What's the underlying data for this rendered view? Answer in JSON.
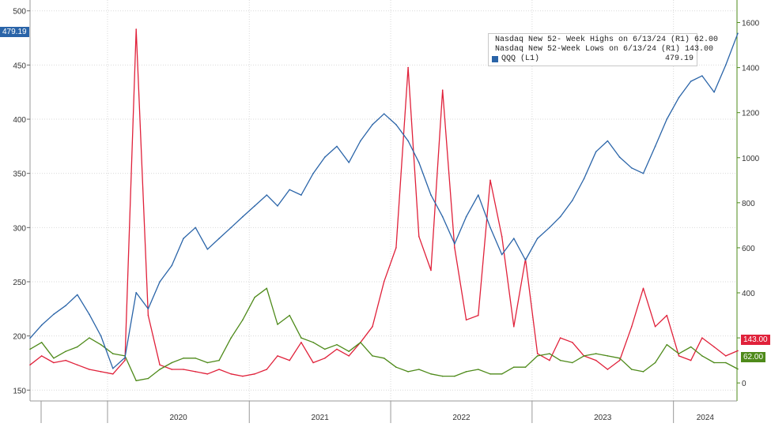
{
  "chart_data": {
    "type": "line",
    "title": "",
    "x_labels": [
      "2020",
      "2021",
      "2022",
      "2023",
      "2024"
    ],
    "left_axis": {
      "ticks": [
        "150",
        "200",
        "250",
        "300",
        "350",
        "400",
        "450",
        "500"
      ],
      "ylim": [
        140,
        510
      ]
    },
    "right_axis": {
      "ticks": [
        "0",
        "200",
        "400",
        "600",
        "800",
        "1000",
        "1200",
        "1400",
        "1600"
      ],
      "ylim": [
        -80,
        1700
      ]
    },
    "x_start": "2019-06",
    "x_end": "2024-06-13",
    "series": [
      {
        "name": "Nasdaq New 52- Week Highs on 6/13/24 (R1)",
        "axis": "right",
        "color": "#4e8a1a",
        "last_value": "62.00",
        "x": [
          "2019-06",
          "2019-07",
          "2019-08",
          "2019-09",
          "2019-10",
          "2019-11",
          "2019-12",
          "2020-01",
          "2020-02",
          "2020-03",
          "2020-04",
          "2020-05",
          "2020-06",
          "2020-07",
          "2020-08",
          "2020-09",
          "2020-10",
          "2020-11",
          "2020-12",
          "2021-01",
          "2021-02",
          "2021-03",
          "2021-04",
          "2021-05",
          "2021-06",
          "2021-07",
          "2021-08",
          "2021-09",
          "2021-10",
          "2021-11",
          "2021-12",
          "2022-01",
          "2022-02",
          "2022-03",
          "2022-04",
          "2022-05",
          "2022-06",
          "2022-07",
          "2022-08",
          "2022-09",
          "2022-10",
          "2022-11",
          "2022-12",
          "2023-01",
          "2023-02",
          "2023-03",
          "2023-04",
          "2023-05",
          "2023-06",
          "2023-07",
          "2023-08",
          "2023-09",
          "2023-10",
          "2023-11",
          "2023-12",
          "2024-01",
          "2024-02",
          "2024-03",
          "2024-04",
          "2024-05",
          "2024-06"
        ],
        "values": [
          150,
          180,
          110,
          140,
          160,
          200,
          170,
          130,
          120,
          10,
          20,
          60,
          90,
          110,
          110,
          90,
          100,
          200,
          280,
          380,
          420,
          260,
          300,
          200,
          180,
          150,
          170,
          140,
          180,
          120,
          110,
          70,
          50,
          60,
          40,
          30,
          30,
          50,
          60,
          40,
          40,
          70,
          70,
          120,
          130,
          100,
          90,
          120,
          130,
          120,
          110,
          60,
          50,
          90,
          170,
          130,
          160,
          120,
          90,
          90,
          62
        ]
      },
      {
        "name": "Nasdaq New 52-Week Lows on 6/13/24 (R1)",
        "axis": "right",
        "color": "#e0213a",
        "last_value": "143.00",
        "x": [
          "2019-06",
          "2019-07",
          "2019-08",
          "2019-09",
          "2019-10",
          "2019-11",
          "2019-12",
          "2020-01",
          "2020-02",
          "2020-03",
          "2020-04",
          "2020-05",
          "2020-06",
          "2020-07",
          "2020-08",
          "2020-09",
          "2020-10",
          "2020-11",
          "2020-12",
          "2021-01",
          "2021-02",
          "2021-03",
          "2021-04",
          "2021-05",
          "2021-06",
          "2021-07",
          "2021-08",
          "2021-09",
          "2021-10",
          "2021-11",
          "2021-12",
          "2022-01",
          "2022-02",
          "2022-03",
          "2022-04",
          "2022-05",
          "2022-06",
          "2022-07",
          "2022-08",
          "2022-09",
          "2022-10",
          "2022-11",
          "2022-12",
          "2023-01",
          "2023-02",
          "2023-03",
          "2023-04",
          "2023-05",
          "2023-06",
          "2023-07",
          "2023-08",
          "2023-09",
          "2023-10",
          "2023-11",
          "2023-12",
          "2024-01",
          "2024-02",
          "2024-03",
          "2024-04",
          "2024-05",
          "2024-06"
        ],
        "values": [
          80,
          120,
          90,
          100,
          80,
          60,
          50,
          40,
          100,
          1570,
          300,
          80,
          60,
          60,
          50,
          40,
          60,
          40,
          30,
          40,
          60,
          120,
          100,
          180,
          90,
          110,
          150,
          120,
          180,
          250,
          450,
          600,
          1400,
          650,
          500,
          1300,
          600,
          280,
          300,
          900,
          650,
          250,
          550,
          130,
          100,
          200,
          180,
          120,
          100,
          60,
          100,
          250,
          420,
          250,
          300,
          120,
          100,
          200,
          160,
          120,
          143
        ]
      },
      {
        "name": "QQQ (L1)",
        "axis": "left",
        "color": "#2a64a8",
        "last_value": "479.19",
        "x": [
          "2019-06",
          "2019-07",
          "2019-08",
          "2019-09",
          "2019-10",
          "2019-11",
          "2019-12",
          "2020-01",
          "2020-02",
          "2020-03",
          "2020-04",
          "2020-05",
          "2020-06",
          "2020-07",
          "2020-08",
          "2020-09",
          "2020-10",
          "2020-11",
          "2020-12",
          "2021-01",
          "2021-02",
          "2021-03",
          "2021-04",
          "2021-05",
          "2021-06",
          "2021-07",
          "2021-08",
          "2021-09",
          "2021-10",
          "2021-11",
          "2021-12",
          "2022-01",
          "2022-02",
          "2022-03",
          "2022-04",
          "2022-05",
          "2022-06",
          "2022-07",
          "2022-08",
          "2022-09",
          "2022-10",
          "2022-11",
          "2022-12",
          "2023-01",
          "2023-02",
          "2023-03",
          "2023-04",
          "2023-05",
          "2023-06",
          "2023-07",
          "2023-08",
          "2023-09",
          "2023-10",
          "2023-11",
          "2023-12",
          "2024-01",
          "2024-02",
          "2024-03",
          "2024-04",
          "2024-05",
          "2024-06"
        ],
        "values": [
          198,
          210,
          220,
          228,
          238,
          220,
          200,
          170,
          180,
          240,
          225,
          250,
          265,
          290,
          300,
          280,
          290,
          300,
          310,
          320,
          330,
          320,
          335,
          330,
          350,
          365,
          375,
          360,
          380,
          395,
          405,
          395,
          380,
          360,
          330,
          310,
          285,
          310,
          330,
          300,
          275,
          290,
          270,
          290,
          300,
          310,
          325,
          345,
          370,
          380,
          365,
          355,
          350,
          375,
          400,
          420,
          435,
          440,
          425,
          450,
          479.19
        ]
      }
    ],
    "legend": {
      "position": "top-right"
    }
  }
}
